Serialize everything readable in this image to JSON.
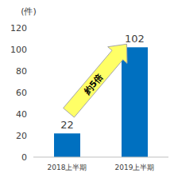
{
  "chart_data": {
    "type": "bar",
    "y_label": "(件)",
    "annotation": "約5倍",
    "categories": [
      "2018上半期",
      "2019上半期"
    ],
    "values": [
      22,
      102
    ],
    "color": "#0070c0",
    "ylim": [
      0,
      120
    ],
    "yticks": [
      0,
      20,
      40,
      60,
      80,
      100,
      120
    ],
    "grid": false,
    "data_labels": true
  }
}
